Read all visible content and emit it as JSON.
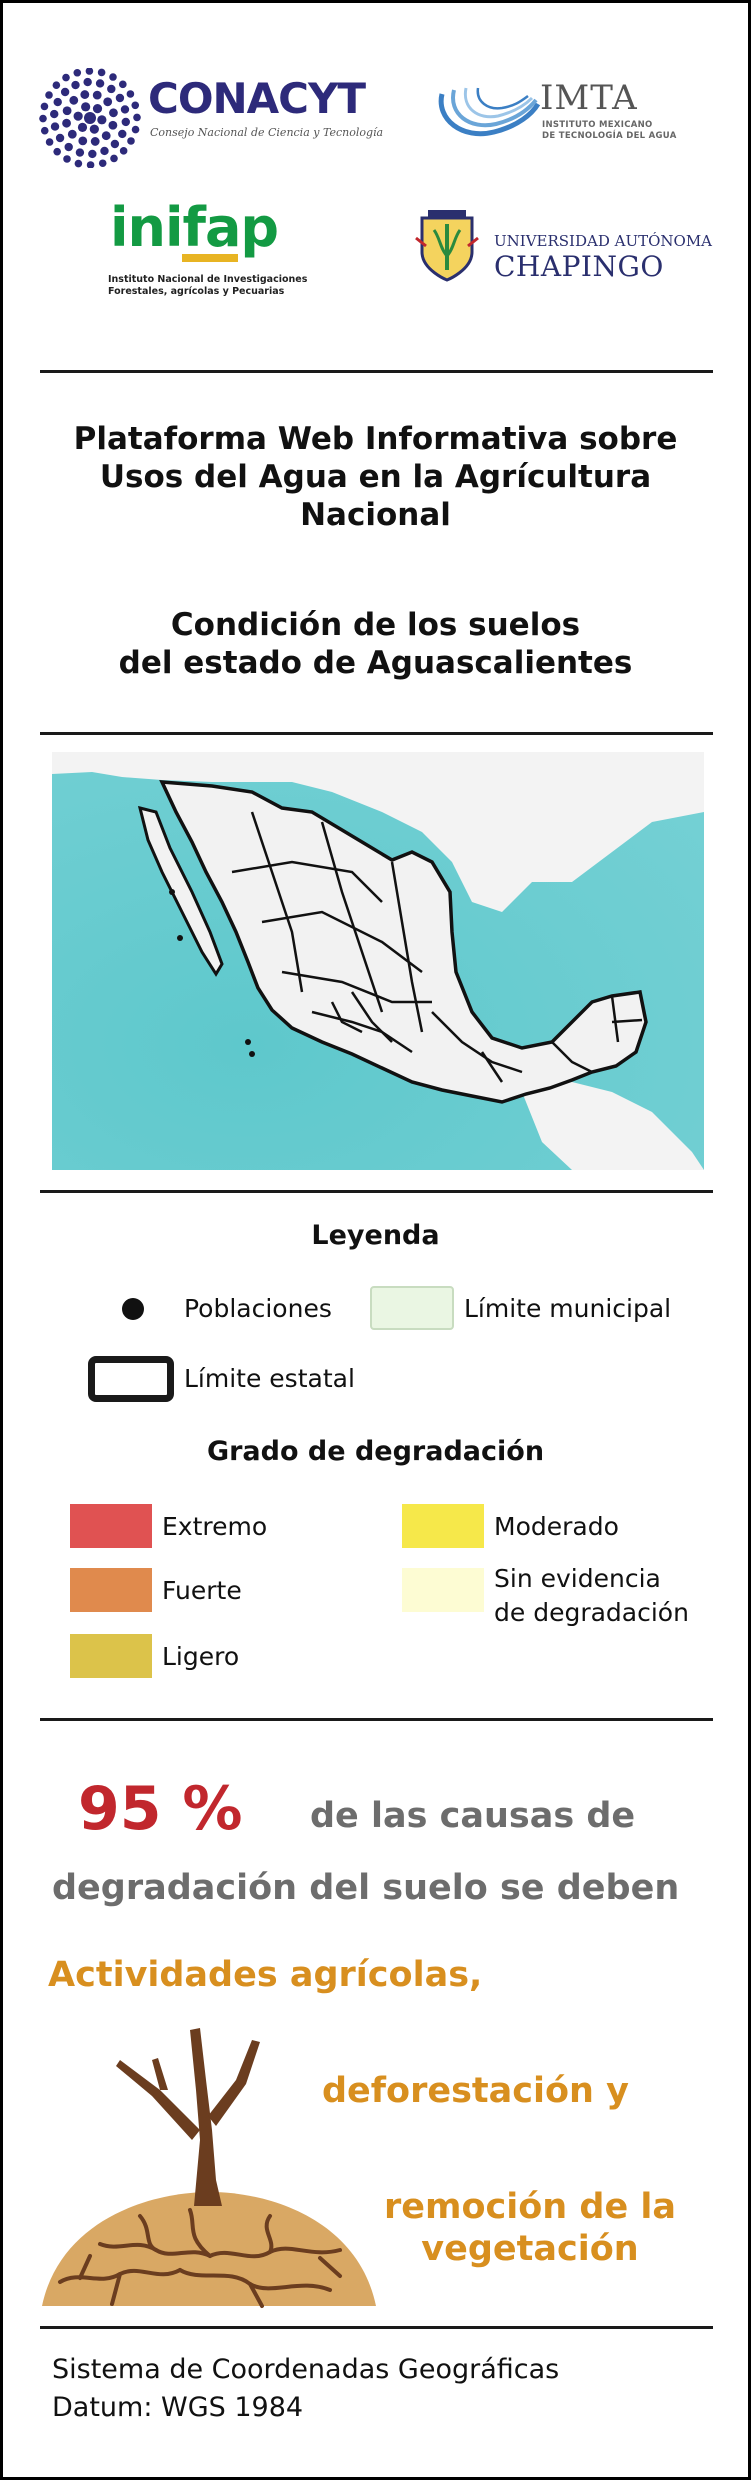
{
  "logos": {
    "conacyt": {
      "name": "CONACYT",
      "subtitle": "Consejo Nacional de Ciencia y Tecnología"
    },
    "imta": {
      "name": "IMTA",
      "subtitle_line1": "INSTITUTO MEXICANO",
      "subtitle_line2": "DE TECNOLOGÍA DEL AGUA"
    },
    "inifap": {
      "name": "inifap",
      "subtitle_line1": "Instituto Nacional de Investigaciones",
      "subtitle_line2": "Forestales, agrícolas y Pecuarias"
    },
    "chapingo": {
      "top": "UNIVERSIDAD AUTÓNOMA",
      "name": "CHAPINGO"
    }
  },
  "header": {
    "title_lines": [
      "Plataforma Web Informativa sobre",
      "Usos del Agua en la Agrícultura",
      "Nacional"
    ],
    "subtitle_lines": [
      "Condición de los suelos",
      "del estado de Aguascalientes"
    ]
  },
  "legend": {
    "title": "Leyenda",
    "poblaciones": "Poblaciones",
    "limite_municipal": "Límite municipal",
    "limite_estatal": "Límite estatal",
    "grado_title": "Grado de degradación",
    "items": [
      {
        "label": "Extremo",
        "color": "#e05252"
      },
      {
        "label": "Fuerte",
        "color": "#e08a4d"
      },
      {
        "label": "Ligero",
        "color": "#dcc34a"
      },
      {
        "label": "Moderado",
        "color": "#f6e84a"
      },
      {
        "label": "Sin evidencia",
        "label2": "de degradación",
        "color": "#fdfcd3"
      }
    ]
  },
  "stats": {
    "percent": "95 %",
    "text1": "de las causas  de",
    "text2": "degradación del suelo se deben",
    "cause1": "Actividades agrícolas,",
    "cause2": "deforestación y",
    "cause3_line1": "remoción de la",
    "cause3_line2": "vegetación"
  },
  "footer": {
    "line1": "Sistema de Coordenadas Geográficas",
    "line2": "Datum: WGS 1984"
  },
  "colors": {
    "sea": "#5ec8cc",
    "land": "#f2f2f2",
    "accent_red": "#c1272d",
    "accent_orange": "#d88f1f",
    "municipal_fill": "#eaf6e3"
  }
}
